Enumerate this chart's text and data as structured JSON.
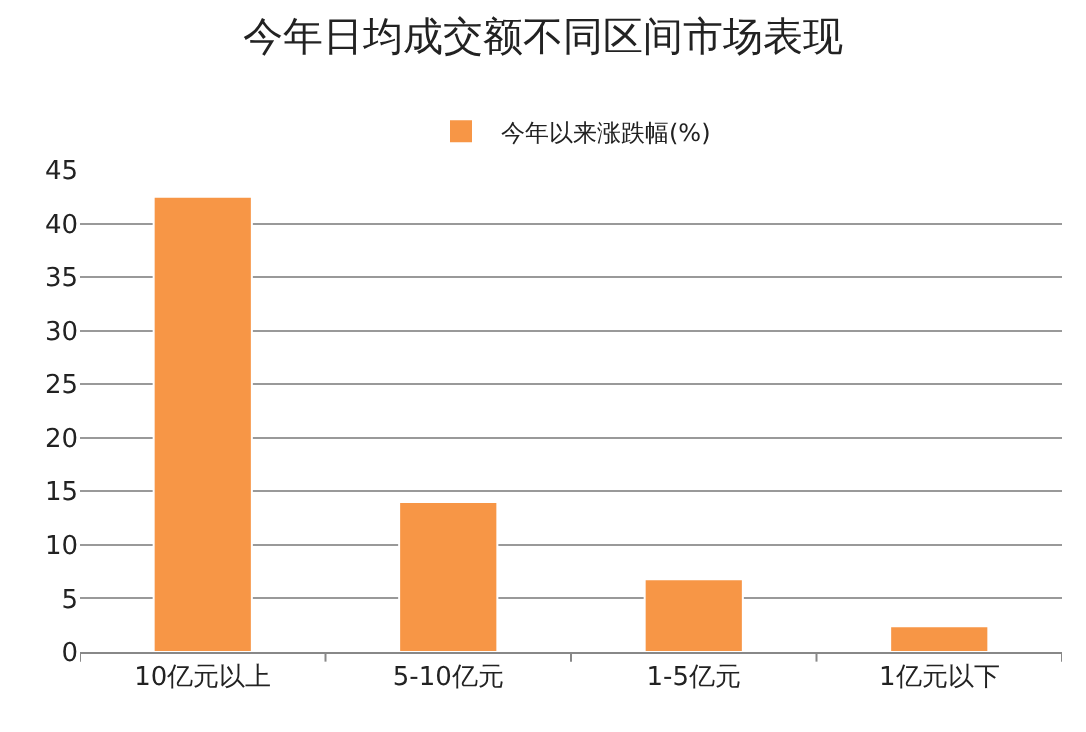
{
  "chart_data": {
    "type": "bar",
    "title": "今年日均成交额不同区间市场表现",
    "categories": [
      "10亿元以上",
      "5-10亿元",
      "1-5亿元",
      "1亿元以下"
    ],
    "series": [
      {
        "name": "今年以来涨跌幅(%)",
        "color": "#f79646",
        "values": [
          42.5,
          14.0,
          6.8,
          2.4
        ]
      }
    ],
    "ylim": [
      0,
      45
    ],
    "yticks": [
      0,
      5,
      10,
      15,
      20,
      25,
      30,
      35,
      40,
      45
    ],
    "grid": "y",
    "legend": "top"
  }
}
